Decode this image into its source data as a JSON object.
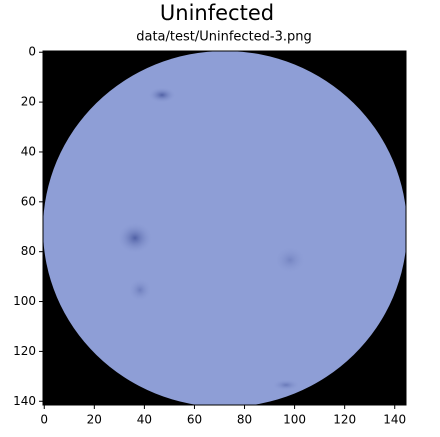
{
  "chart_data": {
    "type": "image",
    "title": "Uninfected",
    "subtitle": "data/test/Uninfected-3.png",
    "xlim": [
      -0.5,
      144.5
    ],
    "xticks": [
      0,
      20,
      40,
      60,
      80,
      100,
      120,
      140
    ],
    "ylim": [
      141.5,
      -0.5
    ],
    "yticks": [
      0,
      20,
      40,
      60,
      80,
      100,
      120,
      140
    ]
  }
}
